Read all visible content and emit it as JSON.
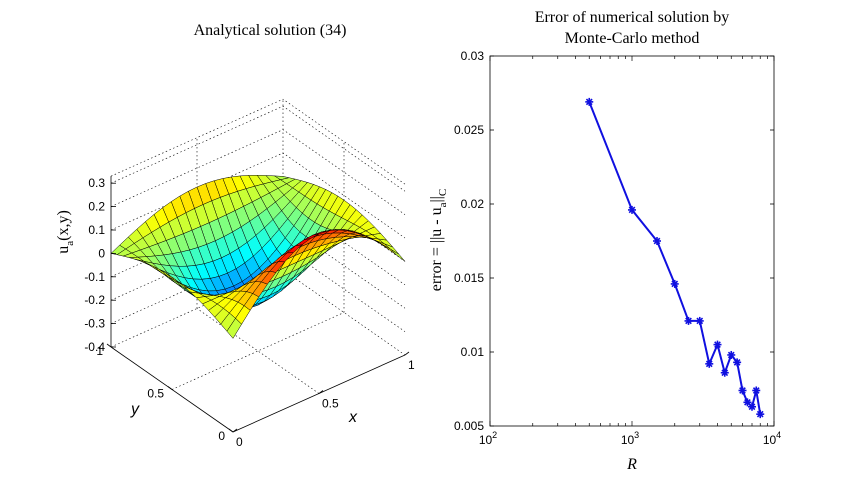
{
  "left_panel": {
    "title": "Analytical solution (34)",
    "zlabel_main": "u",
    "zlabel_sub": "a",
    "zlabel_args": "(x,y)",
    "xlabel": "x",
    "ylabel": "y",
    "z_ticks": [
      "0.3",
      "0.2",
      "0.1",
      "0",
      "-0.1",
      "-0.2",
      "-0.3",
      "-0.4"
    ],
    "x_ticks": [
      "0",
      "0.5",
      "1"
    ],
    "y_ticks": [
      "0",
      "0.5",
      "1"
    ],
    "colormap": "jet"
  },
  "chart_data": {
    "type": "line",
    "title_line1": "Error of numerical solution by",
    "title_line2": "Monte-Carlo method",
    "xlabel": "R",
    "ylabel_prefix": "error = ||u - u",
    "ylabel_sub_a": "a",
    "ylabel_mid": "||",
    "ylabel_sub_c": "C",
    "xscale": "log",
    "xlim": [
      100,
      10000
    ],
    "ylim": [
      0.005,
      0.03
    ],
    "x_ticks": [
      {
        "base": "10",
        "exp": "2"
      },
      {
        "base": "10",
        "exp": "3"
      },
      {
        "base": "10",
        "exp": "4"
      }
    ],
    "y_ticks": [
      "0.005",
      "0.01",
      "0.015",
      "0.02",
      "0.025",
      "0.03"
    ],
    "y_tick_values": [
      0.005,
      0.01,
      0.015,
      0.02,
      0.025,
      0.03
    ],
    "series_color": "#1010e0",
    "marker": "asterisk",
    "series": [
      {
        "x": [
          500,
          1000,
          1500,
          2000,
          2500,
          3000,
          3500,
          4000,
          4500,
          5000,
          5500,
          6000,
          6500,
          7000,
          7500,
          8000
        ],
        "y": [
          0.0269,
          0.0196,
          0.0175,
          0.0146,
          0.0121,
          0.0121,
          0.0092,
          0.0105,
          0.0086,
          0.0098,
          0.0093,
          0.0074,
          0.0066,
          0.0063,
          0.0074,
          0.0058
        ]
      }
    ]
  }
}
